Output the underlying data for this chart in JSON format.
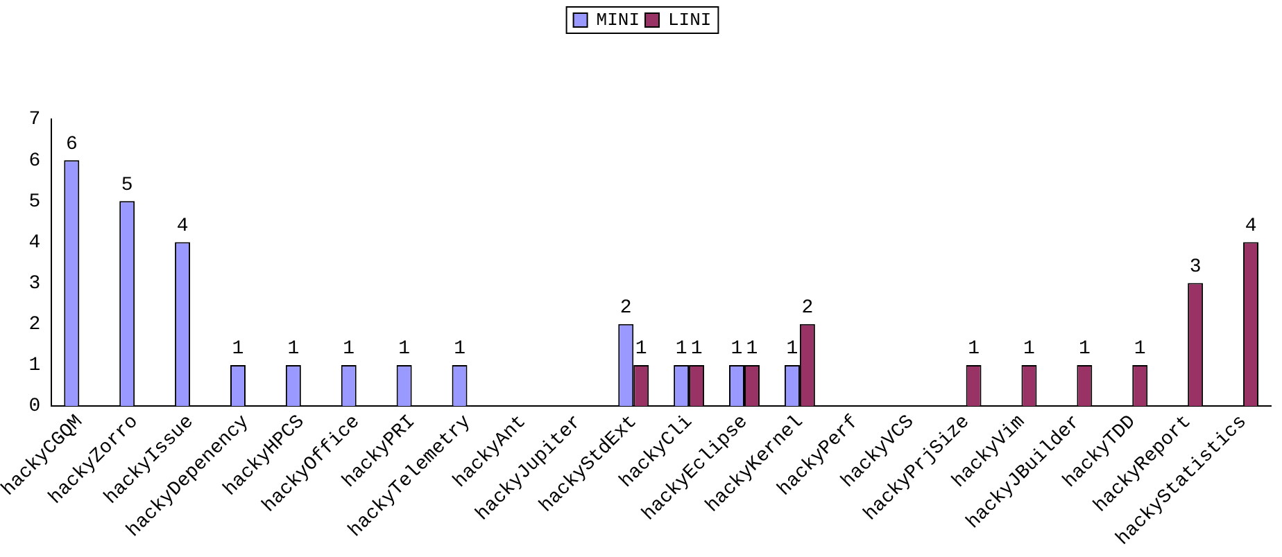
{
  "chart_data": {
    "type": "bar",
    "categories": [
      "hackyCGQM",
      "hackyZorro",
      "hackyIssue",
      "hackyDepenency",
      "hackyHPCS",
      "hackyOffice",
      "hackyPRI",
      "hackyTelemetry",
      "hackyAnt",
      "hackyJupiter",
      "hackyStdExt",
      "hackyCli",
      "hackyEclipse",
      "hackyKernel",
      "hackyPerf",
      "hackyVCS",
      "hackyPrjSize",
      "hackyVim",
      "hackyJBuilder",
      "hackyTDD",
      "hackyReport",
      "hackyStatistics"
    ],
    "series": [
      {
        "name": "MINI",
        "color": "#9999ff",
        "values": [
          6,
          5,
          4,
          1,
          1,
          1,
          1,
          1,
          0,
          0,
          2,
          1,
          1,
          1,
          0,
          0,
          0,
          0,
          0,
          0,
          0,
          0
        ],
        "value_labels": [
          "6",
          "5",
          "4",
          "1",
          "1",
          "1",
          "1",
          "1",
          null,
          null,
          "2",
          "1",
          "1",
          "1",
          null,
          null,
          null,
          null,
          null,
          null,
          null,
          null
        ]
      },
      {
        "name": "LINI",
        "color": "#993366",
        "values": [
          0,
          0,
          0,
          0,
          0,
          0,
          0,
          0,
          0,
          0,
          1,
          1,
          1,
          2,
          0,
          0,
          1,
          1,
          1,
          1,
          3,
          4
        ],
        "value_labels": [
          null,
          null,
          null,
          null,
          null,
          null,
          null,
          null,
          null,
          null,
          "1",
          "1",
          "1",
          "2",
          null,
          null,
          "1",
          "1",
          "1",
          "1",
          "3",
          "4"
        ]
      }
    ],
    "ylim": [
      0,
      7
    ],
    "yticks": [
      0,
      1,
      2,
      3,
      4,
      5,
      6,
      7
    ],
    "grid": false,
    "legend": "top"
  }
}
